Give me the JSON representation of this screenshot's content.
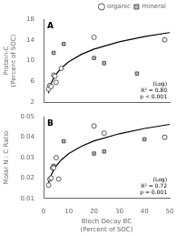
{
  "chart_data": [
    {
      "type": "scatter",
      "title": "A",
      "ylabel": "Protein-C\n(Percent of SOC)",
      "xlim": [
        0,
        50
      ],
      "xticks": [
        0,
        10,
        20,
        30,
        40,
        50
      ],
      "ylim": [
        2,
        18
      ],
      "yticks": [
        2,
        6,
        10,
        14,
        18
      ],
      "tick_labels": "y",
      "grid": false,
      "legend": "upper right",
      "annotation": "(Log)\nR² = 0.80\np < 0.001",
      "series": [
        {
          "name": "organic",
          "color": "white",
          "marker": "circle",
          "x": [
            2,
            2.5,
            3,
            4,
            4.5,
            5,
            7,
            20,
            48
          ],
          "values": [
            4.5,
            5.2,
            5.0,
            7.2,
            7.0,
            5.8,
            8.5,
            14.5,
            14.0
          ]
        },
        {
          "name": "mineral",
          "color": "#b0b8cc",
          "marker": "square",
          "x": [
            4,
            8,
            20,
            24,
            37,
            48
          ],
          "values": [
            11.5,
            13.2,
            10.5,
            9.5,
            7.5,
            14.0
          ]
        },
        {
          "type": "line",
          "color": "black",
          "line_style": "solid",
          "x": [
            1.8,
            2,
            3,
            4,
            5,
            7,
            10,
            15,
            20,
            30,
            40,
            50
          ],
          "values": [
            3.806,
            4.174,
            5.589,
            6.593,
            7.371,
            8.545,
            9.79,
            11.205,
            12.208,
            13.623,
            14.627,
            15.406
          ]
        }
      ]
    },
    {
      "type": "scatter",
      "title": "B",
      "ylabel": "Molar N : C Ratio",
      "xlabel": "Bloch Decay BC\n(Percent of SOC)",
      "xlim": [
        0,
        50
      ],
      "xticks": [
        0,
        10,
        20,
        30,
        40,
        50
      ],
      "ylim": [
        0.01,
        0.05
      ],
      "yticks": [
        0.01,
        0.02,
        0.03,
        0.04,
        0.05
      ],
      "grid": false,
      "annotation": "(Log)\nR² = 0.72\np = 0.001",
      "series": [
        {
          "name": "organic",
          "color": "white",
          "marker": "circle",
          "x": [
            2,
            2.5,
            3,
            3.5,
            4,
            5,
            6,
            20,
            24,
            48
          ],
          "values": [
            0.0165,
            0.0195,
            0.02,
            0.025,
            0.025,
            0.03,
            0.0195,
            0.0455,
            0.042,
            0.04
          ]
        },
        {
          "name": "mineral",
          "color": "#b0b8cc",
          "marker": "square",
          "x": [
            4,
            8,
            20,
            24,
            40,
            48
          ],
          "values": [
            0.026,
            0.038,
            0.032,
            0.033,
            0.039,
            0.04
          ]
        },
        {
          "type": "line",
          "color": "black",
          "line_style": "solid",
          "x": [
            1.8,
            2,
            3,
            4,
            5,
            7,
            10,
            15,
            20,
            30,
            40,
            50
          ],
          "values": [
            0.0169,
            0.0178,
            0.0214,
            0.0239,
            0.0259,
            0.0289,
            0.032,
            0.0356,
            0.0382,
            0.0417,
            0.0443,
            0.0463
          ]
        }
      ]
    }
  ]
}
